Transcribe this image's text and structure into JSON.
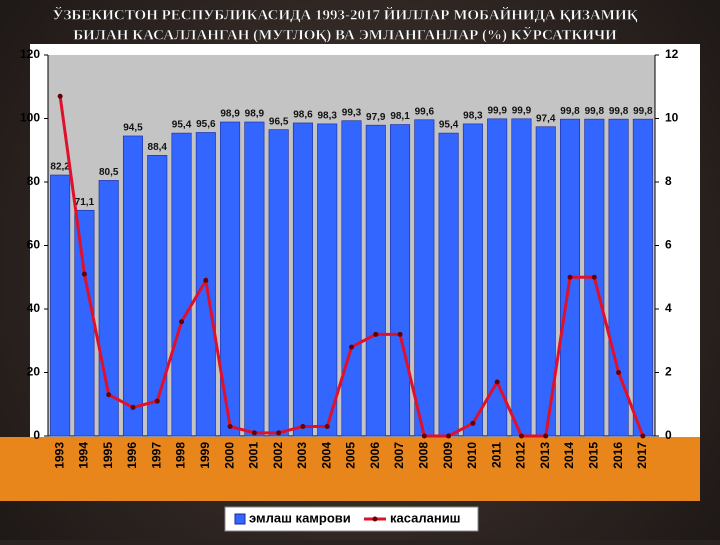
{
  "chart_data": {
    "type": "bar-line",
    "title": [
      "ЎЗБЕКИСТОН РЕСПУБЛИКАСИДА 1993-2017 ЙИЛЛАР МОБАЙНИДА ҚИЗАМИҚ",
      "БИЛАН КАСАЛЛАНГАН (МУТЛОҚ) ВА ЭМЛАНГАНЛАР (%) КЎРСАТКИЧИ"
    ],
    "categories": [
      "1993",
      "1994",
      "1995",
      "1996",
      "1997",
      "1998",
      "1999",
      "2000",
      "2001",
      "2002",
      "2003",
      "2004",
      "2005",
      "2006",
      "2007",
      "2008",
      "2009",
      "2010",
      "2011",
      "2012",
      "2013",
      "2014",
      "2015",
      "2016",
      "2017"
    ],
    "series": [
      {
        "name": "эмлаш камрови",
        "color": "#3366ff",
        "type": "bar",
        "values": [
          82.2,
          71.1,
          80.5,
          94.5,
          88.4,
          95.4,
          95.6,
          98.9,
          98.9,
          96.5,
          98.6,
          98.3,
          99.3,
          97.9,
          98.1,
          99.6,
          95.4,
          98.3,
          99.9,
          99.9,
          97.4,
          99.8,
          99.8,
          99.8,
          99.8
        ],
        "value_labels": [
          "82,2",
          "71,1",
          "80,5",
          "94,5",
          "88,4",
          "95,4",
          "95,6",
          "98,9",
          "98,9",
          "96,5",
          "98,6",
          "98,3",
          "99,3",
          "97,9",
          "98,1",
          "99,6",
          "95,4",
          "98,3",
          "99,9",
          "99,9",
          "97,4",
          "99,8",
          "99,8",
          "99,8",
          "99,8"
        ]
      },
      {
        "name": "касаланиш",
        "color": "#e0102a",
        "type": "line",
        "axis": "y2",
        "values": [
          10.7,
          5.1,
          1.3,
          0.9,
          1.1,
          3.6,
          4.9,
          0.3,
          0.1,
          0.1,
          0.3,
          0.3,
          2.8,
          3.2,
          3.2,
          0,
          0,
          0.4,
          1.7,
          0,
          0,
          5,
          5,
          2,
          0
        ]
      }
    ],
    "ylim": [
      0,
      120
    ],
    "yticks": [
      0,
      20,
      40,
      60,
      80,
      100,
      120
    ],
    "y2lim": [
      0,
      12
    ],
    "y2ticks": [
      0,
      2,
      4,
      6,
      8,
      10,
      12
    ]
  }
}
